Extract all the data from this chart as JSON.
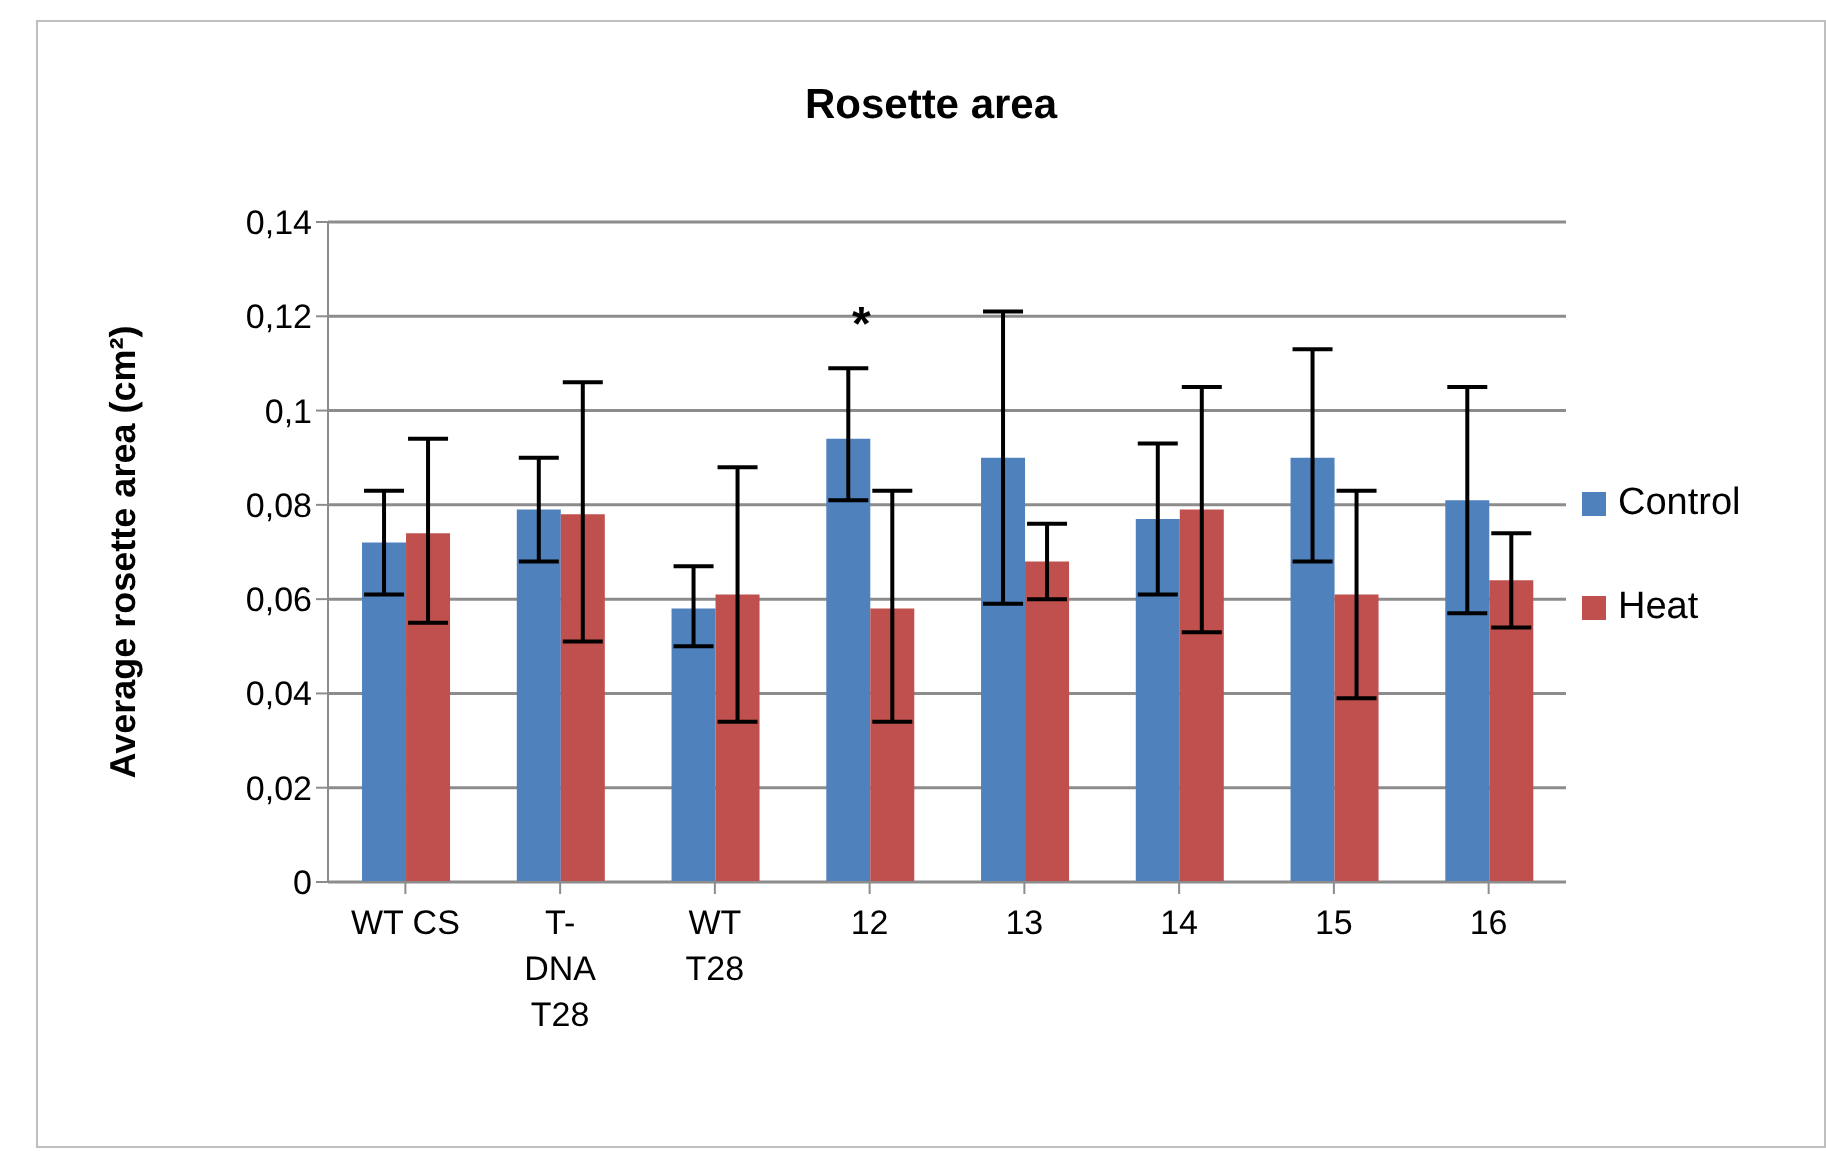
{
  "chart_data": {
    "type": "bar",
    "title": "Rosette area",
    "ylabel": "Average rosette area (cm²)",
    "categories": [
      "WT CS",
      "T-DNA T28",
      "WT T28",
      "12",
      "13",
      "14",
      "15",
      "16"
    ],
    "series": [
      {
        "name": "Control",
        "color": "#4f81bd",
        "values": [
          0.072,
          0.079,
          0.058,
          0.094,
          0.09,
          0.077,
          0.09,
          0.081
        ],
        "errors": [
          [
            0.061,
            0.083
          ],
          [
            0.068,
            0.09
          ],
          [
            0.05,
            0.067
          ],
          [
            0.081,
            0.109
          ],
          [
            0.059,
            0.121
          ],
          [
            0.061,
            0.093
          ],
          [
            0.068,
            0.113
          ],
          [
            0.057,
            0.105
          ]
        ]
      },
      {
        "name": "Heat",
        "color": "#c0504d",
        "values": [
          0.074,
          0.078,
          0.061,
          0.058,
          0.068,
          0.079,
          0.061,
          0.064
        ],
        "errors": [
          [
            0.055,
            0.094
          ],
          [
            0.051,
            0.106
          ],
          [
            0.034,
            0.088
          ],
          [
            0.034,
            0.083
          ],
          [
            0.06,
            0.076
          ],
          [
            0.053,
            0.105
          ],
          [
            0.039,
            0.083
          ],
          [
            0.054,
            0.074
          ]
        ]
      }
    ],
    "ylim": [
      0,
      0.14
    ],
    "yticks": [
      0,
      {
        "value": 0.02,
        "label": "0,02"
      },
      {
        "value": 0.04,
        "label": "0,04"
      },
      {
        "value": 0.06,
        "label": "0,06"
      },
      {
        "value": 0.08,
        "label": "0,08"
      },
      {
        "value": 0.1,
        "label": "0,1"
      },
      {
        "value": 0.12,
        "label": "0,12"
      },
      {
        "value": 0.14,
        "label": "0,14"
      }
    ],
    "grid": "y",
    "legend": "right",
    "annotations": [
      "*"
    ]
  }
}
